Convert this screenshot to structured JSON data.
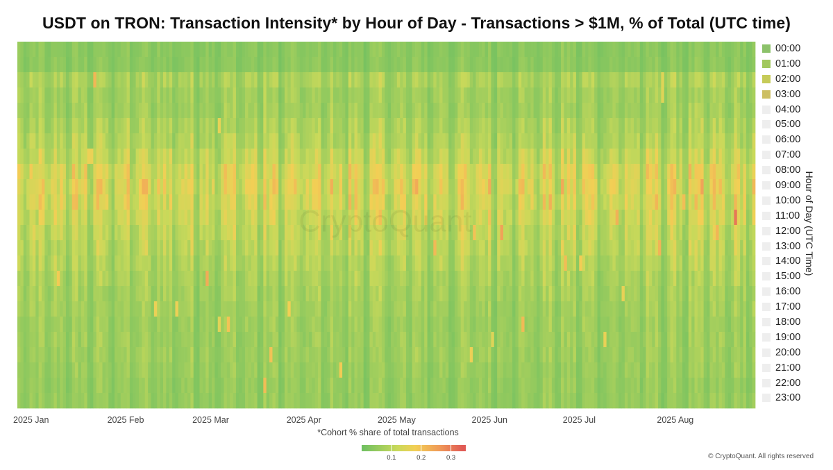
{
  "chart_data": {
    "type": "heatmap",
    "title": "USDT on TRON: Transaction Intensity* by Hour of Day - Transactions > $1M, % of Total (UTC time)",
    "subtitle": "*Cohort % share of total transactions",
    "ylabel": "Hour of Day (UTC Time)",
    "x_start": "2025-01-01",
    "x_end": "2025-08-31",
    "x_tick_labels": [
      "2025 Jan",
      "2025 Feb",
      "2025 Mar",
      "2025 Apr",
      "2025 May",
      "2025 Jun",
      "2025 Jul",
      "2025 Aug"
    ],
    "y_categories": [
      "00:00",
      "01:00",
      "02:00",
      "03:00",
      "04:00",
      "05:00",
      "06:00",
      "07:00",
      "08:00",
      "09:00",
      "10:00",
      "11:00",
      "12:00",
      "13:00",
      "14:00",
      "15:00",
      "16:00",
      "17:00",
      "18:00",
      "19:00",
      "20:00",
      "21:00",
      "22:00",
      "23:00"
    ],
    "hour_mean_share": [
      0.045,
      0.045,
      0.09,
      0.075,
      0.075,
      0.09,
      0.1,
      0.12,
      0.15,
      0.16,
      0.15,
      0.135,
      0.12,
      0.11,
      0.1,
      0.09,
      0.08,
      0.075,
      0.07,
      0.07,
      0.07,
      0.065,
      0.06,
      0.06
    ],
    "hour_colors": [
      "#8cc26a",
      "#a2c85d",
      "#c6cb58",
      "#cdbf63"
    ],
    "hidden_series_color": "#eeeeee",
    "colorscale": {
      "stops": [
        [
          0.0,
          "#6dbf61"
        ],
        [
          0.12,
          "#c9d95a"
        ],
        [
          0.18,
          "#f2cf55"
        ],
        [
          0.26,
          "#f09b58"
        ],
        [
          0.34,
          "#e05a55"
        ]
      ],
      "ticks": [
        "0.1",
        "0.2",
        "0.3"
      ],
      "tick_values": [
        0.1,
        0.2,
        0.3
      ],
      "range": [
        0,
        0.35
      ]
    },
    "legend_position": "right",
    "legend_visible": [
      true,
      true,
      true,
      true,
      false,
      false,
      false,
      false,
      false,
      false,
      false,
      false,
      false,
      false,
      false,
      false,
      false,
      false,
      false,
      false,
      false,
      false,
      false,
      false
    ],
    "grid": false
  },
  "watermark": "CryptoQuant",
  "footer": "© CryptoQuant. All rights reserved"
}
